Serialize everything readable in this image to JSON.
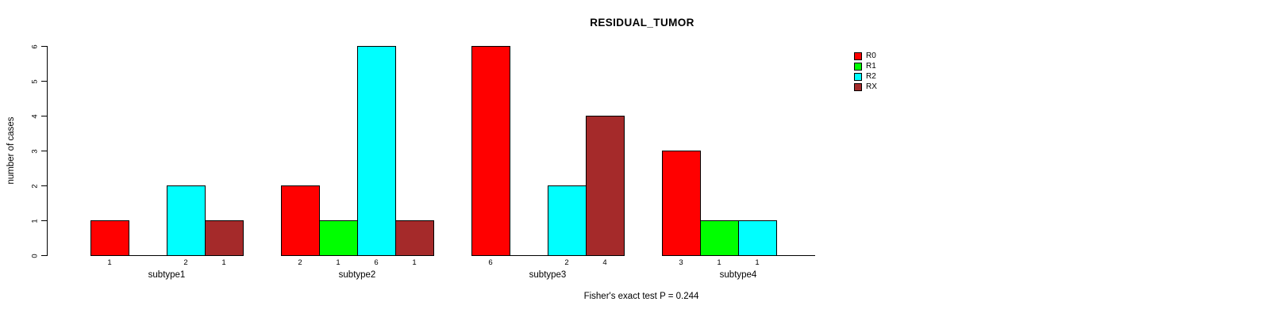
{
  "chart_data": {
    "type": "bar",
    "title": "RESIDUAL_TUMOR",
    "ylabel": "number of cases",
    "xlabel": "",
    "ylim": [
      0,
      6
    ],
    "yticks": [
      0,
      1,
      2,
      3,
      4,
      5,
      6
    ],
    "categories": [
      "subtype1",
      "subtype2",
      "subtype3",
      "subtype4"
    ],
    "series": [
      {
        "name": "R0",
        "color": "#ff0000",
        "values": [
          1,
          2,
          6,
          3
        ]
      },
      {
        "name": "R1",
        "color": "#00ff00",
        "values": [
          0,
          1,
          0,
          1
        ]
      },
      {
        "name": "R2",
        "color": "#00ffff",
        "values": [
          2,
          6,
          2,
          1
        ]
      },
      {
        "name": "RX",
        "color": "#a52a2a",
        "values": [
          1,
          1,
          4,
          0
        ]
      }
    ],
    "bar_value_labels_shown_for_nonzero_only": true,
    "zero_bars_drawn_as_baseline_lines": true,
    "legend_position": "right",
    "grid": "off",
    "annotation": "Fisher's exact test P = 0.244",
    "axis_text_color": "#000000",
    "background_color": "#ffffff"
  }
}
